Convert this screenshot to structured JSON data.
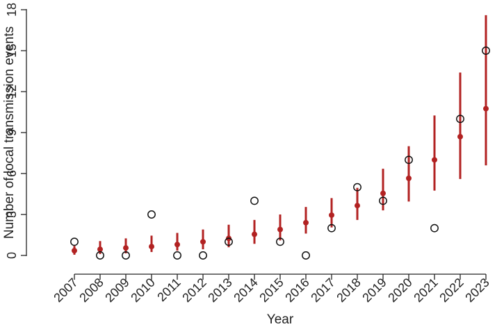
{
  "chart_data": {
    "type": "scatter",
    "xlabel": "Year",
    "ylabel": "Number of local transmission events",
    "categories": [
      "2007",
      "2008",
      "2009",
      "2010",
      "2011",
      "2012",
      "2013",
      "2014",
      "2015",
      "2016",
      "2017",
      "2018",
      "2019",
      "2020",
      "2021",
      "2022",
      "2023"
    ],
    "ylim": [
      0,
      18
    ],
    "yticks": [
      0,
      3,
      6,
      9,
      12,
      15,
      18
    ],
    "grid": false,
    "series": [
      {
        "marker": "filled-circle-with-interval",
        "color": "#b22222",
        "values": [
          0.35,
          0.45,
          0.55,
          0.65,
          0.8,
          1.0,
          1.25,
          1.55,
          1.9,
          2.4,
          2.95,
          3.65,
          4.55,
          5.65,
          7.0,
          8.7,
          10.75
        ],
        "lower": [
          0.05,
          0.1,
          0.15,
          0.25,
          0.35,
          0.45,
          0.6,
          0.85,
          1.1,
          1.6,
          2.05,
          2.6,
          3.3,
          3.95,
          4.75,
          5.6,
          6.6
        ],
        "upper": [
          0.7,
          1.05,
          1.25,
          1.45,
          1.65,
          1.9,
          2.25,
          2.6,
          3.0,
          3.55,
          4.2,
          4.95,
          6.35,
          8.0,
          10.25,
          13.4,
          17.6
        ]
      },
      {
        "marker": "open-circle",
        "color": "#111111",
        "values": [
          1,
          0,
          0,
          3,
          0,
          0,
          1,
          4,
          1,
          0,
          2,
          5,
          4,
          7,
          2,
          10,
          15
        ]
      }
    ]
  }
}
